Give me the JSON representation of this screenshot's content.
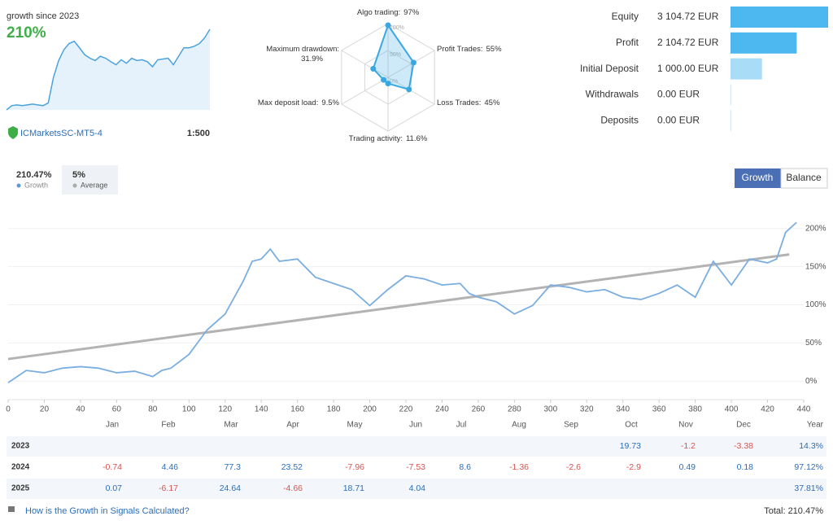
{
  "header": {
    "growth_label": "growth since 2023",
    "growth_value": "210%",
    "broker": "ICMarketsSC-MT5-4",
    "leverage": "1:500"
  },
  "summary": {
    "growth_value": "210.47%",
    "average_value": "5%"
  },
  "tabs": [
    "Growth",
    "Balance"
  ],
  "chart_data": [
    {
      "type": "sparkline",
      "color": "#4aa3df",
      "values": [
        0,
        11,
        13,
        11,
        13,
        15,
        13,
        11,
        18,
        84,
        128,
        156,
        172,
        178,
        161,
        143,
        134,
        128,
        139,
        134,
        125,
        117,
        130,
        121,
        134,
        128,
        130,
        125,
        112,
        130,
        132,
        134,
        117,
        139,
        161,
        161,
        165,
        172,
        187,
        209
      ]
    },
    {
      "type": "radar",
      "color": "#3aa8e0",
      "categories": [
        "Algo trading:",
        "Profit Trades:",
        "Loss Trades:",
        "Trading activity:",
        "Max deposit load:",
        "Maximum drawdown:"
      ],
      "values": [
        97,
        55,
        45,
        11.6,
        9.5,
        31.9
      ],
      "value_labels": [
        "97%",
        "55%",
        "45%",
        "11.6%",
        "9.5%",
        "31.9%"
      ],
      "rticks": [
        {
          "value": 0,
          "label": "0%"
        },
        {
          "value": 50,
          "label": "50%"
        },
        {
          "value": 100,
          "label": "100%"
        }
      ]
    },
    {
      "type": "hbar",
      "categories": [
        "Equity",
        "Profit",
        "Initial Deposit",
        "Withdrawals",
        "Deposits"
      ],
      "values": [
        3104.72,
        2104.72,
        1000,
        0,
        0
      ],
      "value_labels": [
        "3 104.72 EUR",
        "2 104.72 EUR",
        "1 000.00 EUR",
        "0.00 EUR",
        "0.00 EUR"
      ],
      "colors": [
        "#4db8ef",
        "#4db8ef",
        "#a8dcf7",
        "#cfe9f8",
        "#cfe9f8"
      ]
    },
    {
      "type": "line",
      "x": [
        0,
        10,
        20,
        30,
        40,
        50,
        60,
        70,
        80,
        85,
        90,
        100,
        110,
        120,
        130,
        135,
        140,
        145,
        150,
        160,
        170,
        180,
        190,
        200,
        210,
        220,
        230,
        240,
        250,
        255,
        260,
        270,
        280,
        290,
        300,
        310,
        320,
        330,
        340,
        350,
        360,
        370,
        380,
        390,
        400,
        410,
        420,
        425,
        430,
        436
      ],
      "series": [
        {
          "name": "Growth",
          "color": "#7aaee0",
          "values": [
            -2,
            14,
            11,
            17,
            19,
            17,
            11,
            13,
            6,
            14,
            17,
            35,
            67,
            88,
            131,
            157,
            160,
            173,
            157,
            160,
            136,
            128,
            120,
            99,
            120,
            138,
            134,
            126,
            128,
            115,
            110,
            104,
            88,
            99,
            126,
            123,
            117,
            120,
            110,
            107,
            115,
            126,
            110,
            157,
            126,
            160,
            155,
            160,
            195,
            208
          ]
        },
        {
          "name": "Average",
          "color": "#b3b3b3",
          "x": [
            0,
            432
          ],
          "values": [
            29,
            166
          ]
        }
      ],
      "xlim": [
        0,
        440
      ],
      "xticks": [
        0,
        20,
        40,
        60,
        80,
        100,
        120,
        140,
        160,
        180,
        200,
        220,
        240,
        260,
        280,
        300,
        320,
        340,
        360,
        380,
        400,
        420,
        440
      ],
      "ylim": [
        -20,
        220
      ],
      "yticks": [
        {
          "value": 0,
          "label": "0%"
        },
        {
          "value": 50,
          "label": "50%"
        },
        {
          "value": 100,
          "label": "100%"
        },
        {
          "value": 150,
          "label": "150%"
        },
        {
          "value": 200,
          "label": "200%"
        }
      ],
      "grid": true
    }
  ],
  "table": {
    "columns": [
      "Jan",
      "Feb",
      "Mar",
      "Apr",
      "May",
      "Jun",
      "Jul",
      "Aug",
      "Sep",
      "Oct",
      "Nov",
      "Dec",
      "Year"
    ],
    "rows": [
      {
        "year": "2023",
        "cells": [
          null,
          null,
          null,
          null,
          null,
          null,
          null,
          null,
          null,
          19.73,
          -1.2,
          -3.38,
          "14.3%"
        ]
      },
      {
        "year": "2024",
        "cells": [
          -0.74,
          4.46,
          77.3,
          23.52,
          -7.96,
          -7.53,
          8.6,
          -1.36,
          -2.6,
          -2.9,
          0.49,
          0.18,
          "97.12%"
        ]
      },
      {
        "year": "2025",
        "cells": [
          0.07,
          -6.17,
          24.64,
          -4.66,
          18.71,
          4.04,
          null,
          null,
          null,
          null,
          null,
          null,
          "37.81%"
        ]
      }
    ]
  },
  "footer": {
    "link": "How is the Growth in Signals Calculated?",
    "total": "Total: 210.47%"
  }
}
